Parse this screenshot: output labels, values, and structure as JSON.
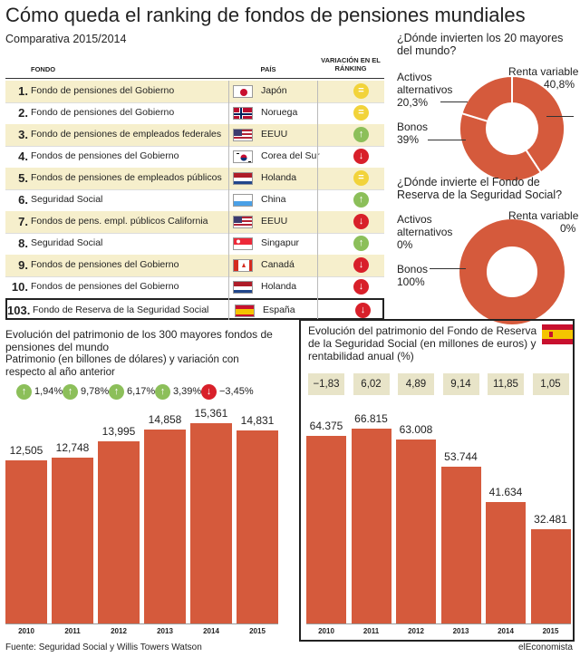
{
  "title": "Cómo queda el ranking de fondos de pensiones mundiales",
  "subtitle": "Comparativa 2015/2014",
  "table": {
    "headers": {
      "fondo": "FONDO",
      "pais": "PAÍS",
      "variacion": "VARIACIÓN EN EL RÁNKING"
    },
    "rows": [
      {
        "num": "1.",
        "name": "Fondo de pensiones del Gobierno",
        "country": "Japón",
        "flag": "japan",
        "change": "same"
      },
      {
        "num": "2.",
        "name": "Fondo de pensiones del Gobierno",
        "country": "Noruega",
        "flag": "norway",
        "change": "same"
      },
      {
        "num": "3.",
        "name": "Fondo de pensiones de empleados federales",
        "country": "EEUU",
        "flag": "usa",
        "change": "up"
      },
      {
        "num": "4.",
        "name": "Fondos de pensiones del Gobierno",
        "country": "Corea del Sur",
        "flag": "korea",
        "change": "down"
      },
      {
        "num": "5.",
        "name": "Fondos de pensiones de empleados públicos",
        "country": "Holanda",
        "flag": "netherlands",
        "change": "same"
      },
      {
        "num": "6.",
        "name": "Seguridad Social",
        "country": "China",
        "flag": "china",
        "change": "up"
      },
      {
        "num": "7.",
        "name": "Fondos de pens. empl. públicos California",
        "country": "EEUU",
        "flag": "usa",
        "change": "down"
      },
      {
        "num": "8.",
        "name": "Seguridad Social",
        "country": "Singapur",
        "flag": "singapore",
        "change": "up"
      },
      {
        "num": "9.",
        "name": "Fondos de pensiones del Gobierno",
        "country": "Canadá",
        "flag": "canada",
        "change": "down"
      },
      {
        "num": "10.",
        "name": "Fondos de pensiones del Gobierno",
        "country": "Holanda",
        "flag": "netherlands",
        "change": "down"
      },
      {
        "num": "103.",
        "name": "Fondo de Reserva de la Seguridad Social",
        "country": "España",
        "flag": "spain",
        "change": "down"
      }
    ]
  },
  "colors": {
    "accent": "#d55a3c",
    "same": "#f2d33a",
    "up": "#8cbf5a",
    "down": "#d8202a",
    "shade": "#f6efcc",
    "rentbg": "#e8e4c8"
  },
  "symbols": {
    "same": "=",
    "up": "↑",
    "down": "↓"
  },
  "chart_data": [
    {
      "type": "pie",
      "title": "¿Dónde invierten los 20 mayores del mundo?",
      "slices": [
        {
          "label": "Renta variable",
          "value": 40.8,
          "display": "40,8%"
        },
        {
          "label": "Bonos",
          "value": 39,
          "display": "39%"
        },
        {
          "label": "Activos alternativos",
          "value": 20.3,
          "display": "20,3%"
        }
      ]
    },
    {
      "type": "pie",
      "title": "¿Dónde invierte el Fondo de Reserva de la Seguridad Social?",
      "slices": [
        {
          "label": "Renta variable",
          "value": 0,
          "display": "0%"
        },
        {
          "label": "Bonos",
          "value": 100,
          "display": "100%"
        },
        {
          "label": "Activos alternativos",
          "value": 0,
          "display": "0%"
        }
      ]
    },
    {
      "type": "bar",
      "title": "Evolución del patrimonio de los 300 mayores fondos de pensiones del mundo",
      "subtitle": "Patrimonio (en billones de dólares) y variación con respecto al año anterior",
      "categories": [
        "2010",
        "2011",
        "2012",
        "2013",
        "2014",
        "2015"
      ],
      "values": [
        12.505,
        12.748,
        13.995,
        14.858,
        15.361,
        14.831
      ],
      "value_labels": [
        "12,505",
        "12,748",
        "13,995",
        "14,858",
        "15,361",
        "14,831"
      ],
      "variations": [
        {
          "label": "1,94%",
          "dir": "up"
        },
        {
          "label": "9,78%",
          "dir": "up"
        },
        {
          "label": "6,17%",
          "dir": "up"
        },
        {
          "label": "3,39%",
          "dir": "up"
        },
        {
          "label": "−3,45%",
          "dir": "down"
        }
      ],
      "ylim": [
        0,
        16
      ]
    },
    {
      "type": "bar",
      "title_main": "Evolución del patrimonio del Fondo de Reserva de la Seguridad Social",
      "title_sub": "(en millones de euros)",
      "title_tail": "y",
      "title_line3": "rentabilidad anual",
      "title_unit": "(%)",
      "categories": [
        "2010",
        "2011",
        "2012",
        "2013",
        "2014",
        "2015"
      ],
      "values": [
        64375,
        66815,
        63008,
        53744,
        41634,
        32481
      ],
      "value_labels": [
        "64.375",
        "66.815",
        "63.008",
        "53.744",
        "41.634",
        "32.481"
      ],
      "rentabilidad": [
        "−1,83",
        "6,02",
        "4,89",
        "9,14",
        "11,85",
        "1,05"
      ],
      "ylim": [
        0,
        70000
      ]
    }
  ],
  "footer": "Fuente: Seguridad Social y Willis Towers Watson",
  "brand": "elEconomista"
}
